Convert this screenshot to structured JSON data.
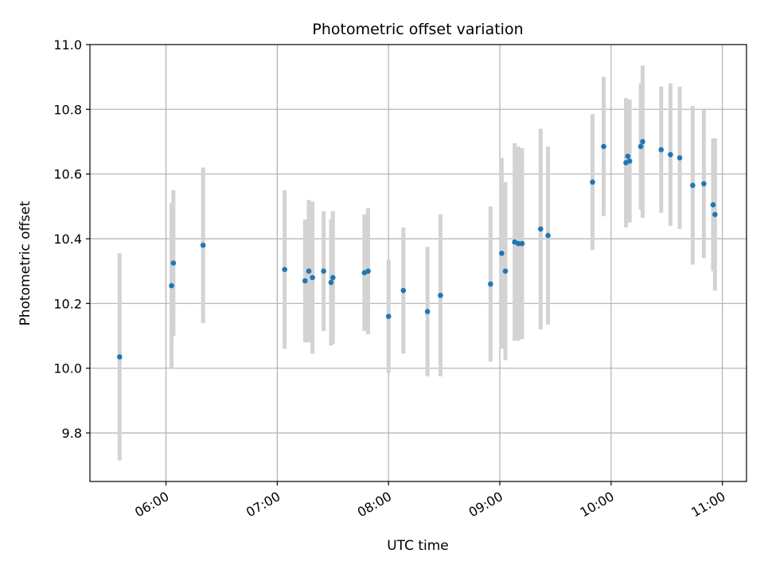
{
  "chart_data": {
    "type": "scatter",
    "title": "Photometric offset variation",
    "xlabel": "UTC time",
    "ylabel": "Photometric offset",
    "xlim": [
      "05:19",
      "11:13"
    ],
    "ylim": [
      9.65,
      11.0
    ],
    "grid": true,
    "x_ticks": [
      "06:00",
      "07:00",
      "08:00",
      "09:00",
      "10:00",
      "11:00"
    ],
    "y_ticks": [
      9.8,
      10.0,
      10.2,
      10.4,
      10.6,
      10.8,
      11.0
    ],
    "y_tick_labels": [
      "9.8",
      "10.0",
      "10.2",
      "10.4",
      "10.6",
      "10.8",
      "11.0"
    ],
    "colors": {
      "point": "#1f77b4",
      "errorbar": "#d3d3d3",
      "grid": "#b0b0b0"
    },
    "points": [
      {
        "x": "05:35",
        "y": 10.035,
        "err": 0.32
      },
      {
        "x": "06:03",
        "y": 10.255,
        "err": 0.255
      },
      {
        "x": "06:04",
        "y": 10.325,
        "err": 0.225
      },
      {
        "x": "06:20",
        "y": 10.38,
        "err": 0.24
      },
      {
        "x": "07:04",
        "y": 10.305,
        "err": 0.245
      },
      {
        "x": "07:15",
        "y": 10.27,
        "err": 0.19
      },
      {
        "x": "07:17",
        "y": 10.3,
        "err": 0.22
      },
      {
        "x": "07:19",
        "y": 10.28,
        "err": 0.235
      },
      {
        "x": "07:25",
        "y": 10.3,
        "err": 0.185
      },
      {
        "x": "07:29",
        "y": 10.265,
        "err": 0.195
      },
      {
        "x": "07:30",
        "y": 10.28,
        "err": 0.205
      },
      {
        "x": "07:47",
        "y": 10.295,
        "err": 0.18
      },
      {
        "x": "07:49",
        "y": 10.3,
        "err": 0.195
      },
      {
        "x": "08:00",
        "y": 10.16,
        "err": 0.175
      },
      {
        "x": "08:08",
        "y": 10.24,
        "err": 0.195
      },
      {
        "x": "08:21",
        "y": 10.175,
        "err": 0.2
      },
      {
        "x": "08:28",
        "y": 10.225,
        "err": 0.25
      },
      {
        "x": "08:55",
        "y": 10.26,
        "err": 0.24
      },
      {
        "x": "09:01",
        "y": 10.355,
        "err": 0.295
      },
      {
        "x": "09:03",
        "y": 10.3,
        "err": 0.275
      },
      {
        "x": "09:08",
        "y": 10.39,
        "err": 0.305
      },
      {
        "x": "09:10",
        "y": 10.385,
        "err": 0.3
      },
      {
        "x": "09:12",
        "y": 10.385,
        "err": 0.295
      },
      {
        "x": "09:22",
        "y": 10.43,
        "err": 0.31
      },
      {
        "x": "09:26",
        "y": 10.41,
        "err": 0.275
      },
      {
        "x": "09:50",
        "y": 10.575,
        "err": 0.21
      },
      {
        "x": "09:56",
        "y": 10.685,
        "err": 0.215
      },
      {
        "x": "10:08",
        "y": 10.635,
        "err": 0.2
      },
      {
        "x": "10:09",
        "y": 10.655,
        "err": 0.175
      },
      {
        "x": "10:10",
        "y": 10.64,
        "err": 0.19
      },
      {
        "x": "10:16",
        "y": 10.685,
        "err": 0.195
      },
      {
        "x": "10:17",
        "y": 10.7,
        "err": 0.235
      },
      {
        "x": "10:27",
        "y": 10.675,
        "err": 0.195
      },
      {
        "x": "10:32",
        "y": 10.66,
        "err": 0.22
      },
      {
        "x": "10:37",
        "y": 10.65,
        "err": 0.22
      },
      {
        "x": "10:44",
        "y": 10.565,
        "err": 0.245
      },
      {
        "x": "10:50",
        "y": 10.57,
        "err": 0.23
      },
      {
        "x": "10:55",
        "y": 10.505,
        "err": 0.205
      },
      {
        "x": "10:56",
        "y": 10.475,
        "err": 0.235
      }
    ]
  }
}
